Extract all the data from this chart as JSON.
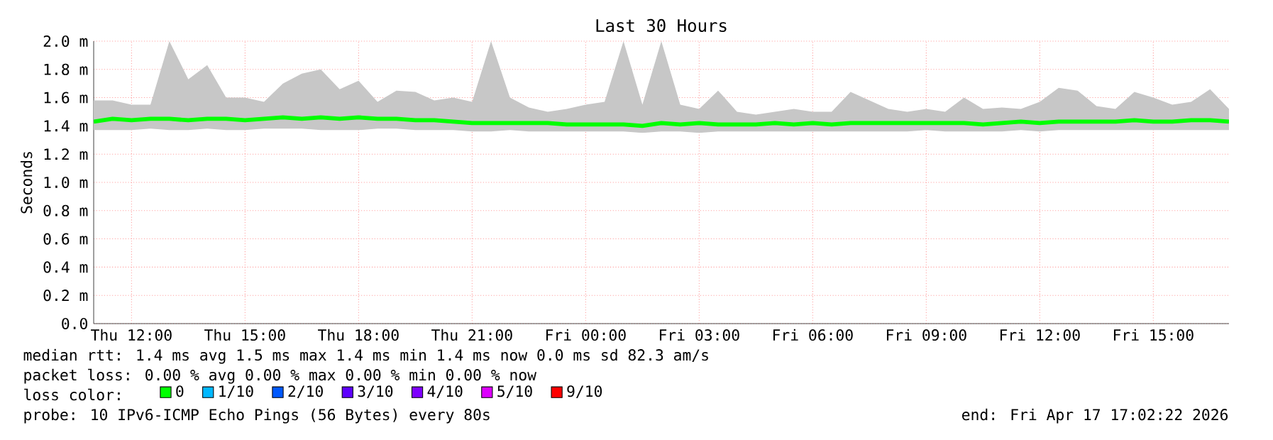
{
  "chart_data": {
    "type": "line",
    "title": "Last 30 Hours",
    "ylabel": "Seconds",
    "xlim": [
      "2026-04-16T11:00",
      "2026-04-17T17:00"
    ],
    "xticks": [
      {
        "value": "2026-04-16T12:00",
        "label": "Thu 12:00"
      },
      {
        "value": "2026-04-16T15:00",
        "label": "Thu 15:00"
      },
      {
        "value": "2026-04-16T18:00",
        "label": "Thu 18:00"
      },
      {
        "value": "2026-04-16T21:00",
        "label": "Thu 21:00"
      },
      {
        "value": "2026-04-17T00:00",
        "label": "Fri 00:00"
      },
      {
        "value": "2026-04-17T03:00",
        "label": "Fri 03:00"
      },
      {
        "value": "2026-04-17T06:00",
        "label": "Fri 06:00"
      },
      {
        "value": "2026-04-17T09:00",
        "label": "Fri 09:00"
      },
      {
        "value": "2026-04-17T12:00",
        "label": "Fri 12:00"
      },
      {
        "value": "2026-04-17T15:00",
        "label": "Fri 15:00"
      }
    ],
    "ylim": [
      0,
      2.0
    ],
    "yticks": [
      {
        "value": 0,
        "label": "0.0"
      },
      {
        "value": 0.2,
        "label": "0.2 m"
      },
      {
        "value": 0.4,
        "label": "0.4 m"
      },
      {
        "value": 0.6,
        "label": "0.6 m"
      },
      {
        "value": 0.8,
        "label": "0.8 m"
      },
      {
        "value": 1.0,
        "label": "1.0 m"
      },
      {
        "value": 1.2,
        "label": "1.2 m"
      },
      {
        "value": 1.4,
        "label": "1.4 m"
      },
      {
        "value": 1.6,
        "label": "1.6 m"
      },
      {
        "value": 1.8,
        "label": "1.8 m"
      },
      {
        "value": 2.0,
        "label": "2.0 m"
      }
    ],
    "grid": true,
    "legend": "bottom left",
    "marker": "none",
    "line_style": "solid",
    "x": [
      "2026-04-16T11:00",
      "2026-04-16T11:30",
      "2026-04-16T12:00",
      "2026-04-16T12:30",
      "2026-04-16T13:00",
      "2026-04-16T13:30",
      "2026-04-16T14:00",
      "2026-04-16T14:30",
      "2026-04-16T15:00",
      "2026-04-16T15:30",
      "2026-04-16T16:00",
      "2026-04-16T16:30",
      "2026-04-16T17:00",
      "2026-04-16T17:30",
      "2026-04-16T18:00",
      "2026-04-16T18:30",
      "2026-04-16T19:00",
      "2026-04-16T19:30",
      "2026-04-16T20:00",
      "2026-04-16T20:30",
      "2026-04-16T21:00",
      "2026-04-16T21:30",
      "2026-04-16T22:00",
      "2026-04-16T22:30",
      "2026-04-16T23:00",
      "2026-04-16T23:30",
      "2026-04-17T00:00",
      "2026-04-17T00:30",
      "2026-04-17T01:00",
      "2026-04-17T01:30",
      "2026-04-17T02:00",
      "2026-04-17T02:30",
      "2026-04-17T03:00",
      "2026-04-17T03:30",
      "2026-04-17T04:00",
      "2026-04-17T04:30",
      "2026-04-17T05:00",
      "2026-04-17T05:30",
      "2026-04-17T06:00",
      "2026-04-17T06:30",
      "2026-04-17T07:00",
      "2026-04-17T07:30",
      "2026-04-17T08:00",
      "2026-04-17T08:30",
      "2026-04-17T09:00",
      "2026-04-17T09:30",
      "2026-04-17T10:00",
      "2026-04-17T10:30",
      "2026-04-17T11:00",
      "2026-04-17T11:30",
      "2026-04-17T12:00",
      "2026-04-17T12:30",
      "2026-04-17T13:00",
      "2026-04-17T13:30",
      "2026-04-17T14:00",
      "2026-04-17T14:30",
      "2026-04-17T15:00",
      "2026-04-17T15:30",
      "2026-04-17T16:00",
      "2026-04-17T16:30",
      "2026-04-17T17:00"
    ],
    "series": [
      {
        "name": "0",
        "color": "#00ff00",
        "values": [
          1.43,
          1.45,
          1.44,
          1.45,
          1.45,
          1.44,
          1.45,
          1.45,
          1.44,
          1.45,
          1.46,
          1.45,
          1.46,
          1.45,
          1.46,
          1.45,
          1.45,
          1.44,
          1.44,
          1.43,
          1.42,
          1.42,
          1.42,
          1.42,
          1.42,
          1.41,
          1.41,
          1.41,
          1.41,
          1.4,
          1.42,
          1.41,
          1.42,
          1.41,
          1.41,
          1.41,
          1.42,
          1.41,
          1.42,
          1.41,
          1.42,
          1.42,
          1.42,
          1.42,
          1.42,
          1.42,
          1.42,
          1.41,
          1.42,
          1.43,
          1.42,
          1.43,
          1.43,
          1.43,
          1.43,
          1.44,
          1.43,
          1.43,
          1.44,
          1.44,
          1.43
        ],
        "lower": [
          1.37,
          1.37,
          1.37,
          1.38,
          1.37,
          1.37,
          1.38,
          1.37,
          1.37,
          1.38,
          1.38,
          1.38,
          1.37,
          1.37,
          1.37,
          1.38,
          1.38,
          1.37,
          1.37,
          1.37,
          1.36,
          1.36,
          1.37,
          1.36,
          1.36,
          1.36,
          1.36,
          1.36,
          1.36,
          1.35,
          1.36,
          1.36,
          1.35,
          1.36,
          1.36,
          1.36,
          1.36,
          1.36,
          1.36,
          1.36,
          1.36,
          1.36,
          1.36,
          1.36,
          1.37,
          1.36,
          1.36,
          1.36,
          1.36,
          1.37,
          1.36,
          1.37,
          1.37,
          1.37,
          1.37,
          1.37,
          1.37,
          1.37,
          1.37,
          1.37,
          1.37
        ],
        "upper": [
          1.58,
          1.58,
          1.55,
          1.55,
          2.0,
          1.73,
          1.83,
          1.6,
          1.6,
          1.57,
          1.7,
          1.77,
          1.8,
          1.66,
          1.72,
          1.57,
          1.65,
          1.64,
          1.58,
          1.6,
          1.57,
          2.0,
          1.6,
          1.53,
          1.5,
          1.52,
          1.55,
          1.57,
          2.0,
          1.55,
          2.0,
          1.55,
          1.52,
          1.65,
          1.5,
          1.48,
          1.5,
          1.52,
          1.5,
          1.5,
          1.64,
          1.58,
          1.52,
          1.5,
          1.52,
          1.5,
          1.6,
          1.52,
          1.53,
          1.52,
          1.57,
          1.67,
          1.65,
          1.54,
          1.52,
          1.64,
          1.6,
          1.55,
          1.57,
          1.66,
          1.52
        ]
      },
      {
        "name": "1/10",
        "color": "#00b8ff",
        "values": [
          null,
          null,
          null,
          null,
          null,
          null,
          null,
          null,
          null,
          null,
          null,
          null,
          null,
          null,
          null,
          null,
          null,
          null,
          null,
          null,
          null,
          null,
          null,
          null,
          null,
          null,
          null,
          null,
          null,
          null,
          null,
          null,
          null,
          null,
          null,
          null,
          null,
          null,
          null,
          null,
          null,
          null,
          null,
          null,
          null,
          null,
          null,
          null,
          null,
          null,
          null,
          null,
          null,
          null,
          null,
          null,
          null,
          null,
          null,
          null,
          null
        ]
      },
      {
        "name": "2/10",
        "color": "#0059ff",
        "values": [
          null,
          null,
          null,
          null,
          null,
          null,
          null,
          null,
          null,
          null,
          null,
          null,
          null,
          null,
          null,
          null,
          null,
          null,
          null,
          null,
          null,
          null,
          null,
          null,
          null,
          null,
          null,
          null,
          null,
          null,
          null,
          null,
          null,
          null,
          null,
          null,
          null,
          null,
          null,
          null,
          null,
          null,
          null,
          null,
          null,
          null,
          null,
          null,
          null,
          null,
          null,
          null,
          null,
          null,
          null,
          null,
          null,
          null,
          null,
          null,
          null
        ]
      },
      {
        "name": "3/10",
        "color": "#5e00ff",
        "values": [
          null,
          null,
          null,
          null,
          null,
          null,
          null,
          null,
          null,
          null,
          null,
          null,
          null,
          null,
          null,
          null,
          null,
          null,
          null,
          null,
          null,
          null,
          null,
          null,
          null,
          null,
          null,
          null,
          null,
          null,
          null,
          null,
          null,
          null,
          null,
          null,
          null,
          null,
          null,
          null,
          null,
          null,
          null,
          null,
          null,
          null,
          null,
          null,
          null,
          null,
          null,
          null,
          null,
          null,
          null,
          null,
          null,
          null,
          null,
          null,
          null
        ]
      },
      {
        "name": "4/10",
        "color": "#7e00ff",
        "values": [
          null,
          null,
          null,
          null,
          null,
          null,
          null,
          null,
          null,
          null,
          null,
          null,
          null,
          null,
          null,
          null,
          null,
          null,
          null,
          null,
          null,
          null,
          null,
          null,
          null,
          null,
          null,
          null,
          null,
          null,
          null,
          null,
          null,
          null,
          null,
          null,
          null,
          null,
          null,
          null,
          null,
          null,
          null,
          null,
          null,
          null,
          null,
          null,
          null,
          null,
          null,
          null,
          null,
          null,
          null,
          null,
          null,
          null,
          null,
          null,
          null
        ]
      },
      {
        "name": "5/10",
        "color": "#dd00ff",
        "values": [
          null,
          null,
          null,
          null,
          null,
          null,
          null,
          null,
          null,
          null,
          null,
          null,
          null,
          null,
          null,
          null,
          null,
          null,
          null,
          null,
          null,
          null,
          null,
          null,
          null,
          null,
          null,
          null,
          null,
          null,
          null,
          null,
          null,
          null,
          null,
          null,
          null,
          null,
          null,
          null,
          null,
          null,
          null,
          null,
          null,
          null,
          null,
          null,
          null,
          null,
          null,
          null,
          null,
          null,
          null,
          null,
          null,
          null,
          null,
          null,
          null
        ]
      },
      {
        "name": "9/10",
        "color": "#ff0000",
        "values": [
          null,
          null,
          null,
          null,
          null,
          null,
          null,
          null,
          null,
          null,
          null,
          null,
          null,
          null,
          null,
          null,
          null,
          null,
          null,
          null,
          null,
          null,
          null,
          null,
          null,
          null,
          null,
          null,
          null,
          null,
          null,
          null,
          null,
          null,
          null,
          null,
          null,
          null,
          null,
          null,
          null,
          null,
          null,
          null,
          null,
          null,
          null,
          null,
          null,
          null,
          null,
          null,
          null,
          null,
          null,
          null,
          null,
          null,
          null,
          null,
          null
        ]
      }
    ],
    "annotations": [
      "median rtt: 1.4 ms avg 1.5 ms max 1.4 ms min 1.4 ms now 0.0 ms sd 82.3 am/s",
      "packet loss: 0.00 % avg 0.00 % max 0.00 % min 0.00 % now",
      "loss color:",
      "probe: 10 IPv6-ICMP Echo Pings (56 Bytes) every 80s",
      "end: Fri Apr 17 17:02:22 2026"
    ]
  }
}
